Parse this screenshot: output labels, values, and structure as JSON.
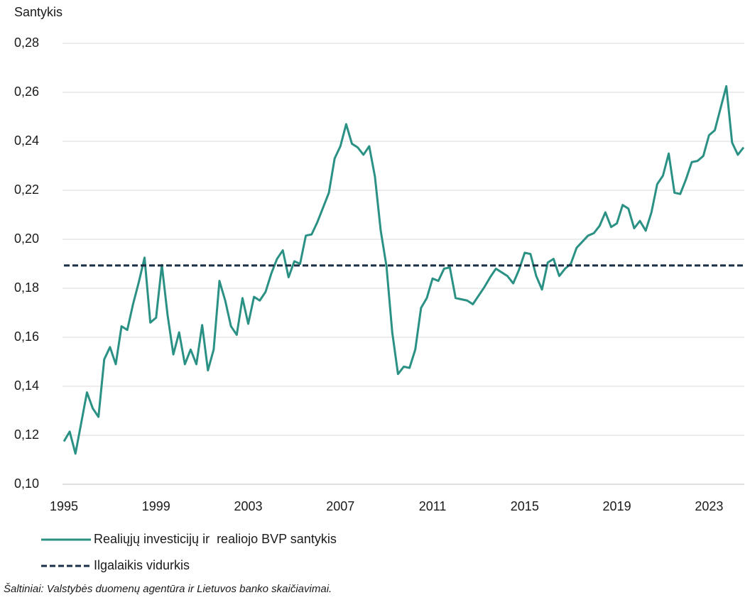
{
  "chart_data": {
    "type": "line",
    "y_axis_label": "Santykis",
    "source": "Šaltiniai: Valstybės duomenų agentūra ir Lietuvos banko skaičiavimai.",
    "xlim": [
      1995,
      2024.5
    ],
    "xticks": [
      1995,
      1999,
      2003,
      2007,
      2011,
      2015,
      2019,
      2023
    ],
    "ylim": [
      0.1,
      0.28
    ],
    "yticks": [
      {
        "value": 0.1,
        "label": "0,10"
      },
      {
        "value": 0.12,
        "label": "0,12"
      },
      {
        "value": 0.14,
        "label": "0,14"
      },
      {
        "value": 0.16,
        "label": "0,16"
      },
      {
        "value": 0.18,
        "label": "0,18"
      },
      {
        "value": 0.2,
        "label": "0,20"
      },
      {
        "value": 0.22,
        "label": "0,22"
      },
      {
        "value": 0.24,
        "label": "0,24"
      },
      {
        "value": 0.26,
        "label": "0,26"
      },
      {
        "value": 0.28,
        "label": "0,28"
      }
    ],
    "grid": true,
    "series": [
      {
        "name": "Realiųjų investicijų ir  realiojo BVP santykis",
        "color": "#2a9184",
        "dashed": false,
        "x": [
          1995,
          1995.25,
          1995.5,
          1995.75,
          1996,
          1996.25,
          1996.5,
          1996.75,
          1997,
          1997.25,
          1997.5,
          1997.75,
          1998,
          1998.25,
          1998.5,
          1998.75,
          1999,
          1999.25,
          1999.5,
          1999.75,
          2000,
          2000.25,
          2000.5,
          2000.75,
          2001,
          2001.25,
          2001.5,
          2001.75,
          2002,
          2002.25,
          2002.5,
          2002.75,
          2003,
          2003.25,
          2003.5,
          2003.75,
          2004,
          2004.25,
          2004.5,
          2004.75,
          2005,
          2005.25,
          2005.5,
          2005.75,
          2006,
          2006.25,
          2006.5,
          2006.75,
          2007,
          2007.25,
          2007.5,
          2007.75,
          2008,
          2008.25,
          2008.5,
          2008.75,
          2009,
          2009.25,
          2009.5,
          2009.75,
          2010,
          2010.25,
          2010.5,
          2010.75,
          2011,
          2011.25,
          2011.5,
          2011.75,
          2012,
          2012.25,
          2012.5,
          2012.75,
          2013,
          2013.25,
          2013.5,
          2013.75,
          2014,
          2014.25,
          2014.5,
          2014.75,
          2015,
          2015.25,
          2015.5,
          2015.75,
          2016,
          2016.25,
          2016.5,
          2016.75,
          2017,
          2017.25,
          2017.5,
          2017.75,
          2018,
          2018.25,
          2018.5,
          2018.75,
          2019,
          2019.25,
          2019.5,
          2019.75,
          2020,
          2020.25,
          2020.5,
          2020.75,
          2021,
          2021.25,
          2021.5,
          2021.75,
          2022,
          2022.25,
          2022.5,
          2022.75,
          2023,
          2023.25,
          2023.5,
          2023.75,
          2024,
          2024.25,
          2024.5
        ],
        "values": [
          0.1175,
          0.1215,
          0.1125,
          0.125,
          0.1375,
          0.131,
          0.1275,
          0.151,
          0.156,
          0.149,
          0.1645,
          0.163,
          0.1735,
          0.1825,
          0.1925,
          0.166,
          0.168,
          0.1895,
          0.169,
          0.153,
          0.162,
          0.149,
          0.155,
          0.149,
          0.165,
          0.1465,
          0.155,
          0.183,
          0.175,
          0.1645,
          0.161,
          0.176,
          0.1655,
          0.1765,
          0.175,
          0.1785,
          0.186,
          0.192,
          0.1955,
          0.1845,
          0.191,
          0.19,
          0.2015,
          0.202,
          0.207,
          0.213,
          0.219,
          0.233,
          0.238,
          0.247,
          0.239,
          0.2375,
          0.2345,
          0.238,
          0.2255,
          0.2035,
          0.189,
          0.162,
          0.145,
          0.148,
          0.1475,
          0.155,
          0.172,
          0.176,
          0.184,
          0.183,
          0.188,
          0.1885,
          0.176,
          0.1755,
          0.175,
          0.1735,
          0.177,
          0.1805,
          0.1845,
          0.188,
          0.1865,
          0.185,
          0.182,
          0.1875,
          0.1945,
          0.194,
          0.185,
          0.1795,
          0.1905,
          0.192,
          0.185,
          0.188,
          0.19,
          0.1965,
          0.199,
          0.2015,
          0.2025,
          0.2055,
          0.211,
          0.205,
          0.2065,
          0.214,
          0.2125,
          0.2045,
          0.2075,
          0.2035,
          0.211,
          0.2225,
          0.226,
          0.235,
          0.219,
          0.2185,
          0.2245,
          0.2315,
          0.232,
          0.234,
          0.2425,
          0.2445,
          0.2535,
          0.2625,
          0.2395,
          0.2345,
          0.2375
        ]
      },
      {
        "name": "Ilgalaikis vidurkis",
        "color": "#1b2f45",
        "dashed": true,
        "x": [
          1995,
          2024.5
        ],
        "values": [
          0.1893,
          0.1893
        ]
      }
    ]
  }
}
